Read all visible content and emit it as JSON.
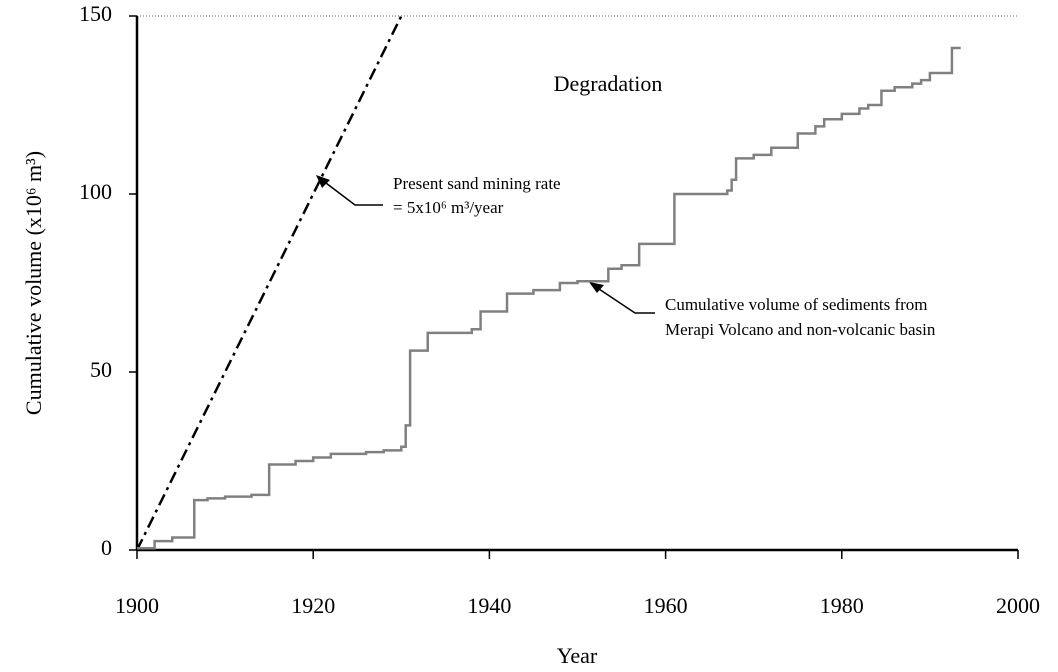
{
  "chart_data": {
    "type": "line",
    "xlabel": "Year",
    "ylabel": "Cumulative volume (x10⁶ m³)",
    "xlim": [
      1900,
      2000
    ],
    "xticks": [
      1900,
      1920,
      1940,
      1960,
      1980,
      2000
    ],
    "ylim": [
      0,
      150
    ],
    "yticks": [
      0,
      50,
      100,
      150
    ],
    "annotations": [
      "Degradation",
      "Present sand mining rate",
      "= 5x10⁶ m³/year",
      "Cumulative volume of sediments from",
      "Merapi Volcano and non-volcanic basin"
    ],
    "series": [
      {
        "name": "Present sand mining rate",
        "color": "#000000",
        "dash": "dash-dot",
        "step": false,
        "x": [
          1900,
          1930
        ],
        "values": [
          0,
          150
        ]
      },
      {
        "name": "Cumulative volume of sediments",
        "color": "#808080",
        "dash": "solid",
        "step": true,
        "x": [
          1900,
          1902,
          1904,
          1906.5,
          1908,
          1910,
          1913,
          1915,
          1918,
          1920,
          1922,
          1926,
          1928,
          1930,
          1930.5,
          1931,
          1933,
          1938,
          1939,
          1942,
          1945,
          1948,
          1950,
          1953.5,
          1955,
          1957,
          1961,
          1967,
          1967.5,
          1968,
          1970,
          1972,
          1975,
          1977,
          1978,
          1980,
          1982,
          1983,
          1984.5,
          1986,
          1988,
          1989,
          1990,
          1992.5,
          1993.5
        ],
        "values": [
          0.5,
          2.5,
          3.5,
          14,
          14.5,
          15,
          15.5,
          24,
          25,
          26,
          27,
          27.5,
          28,
          29,
          35,
          56,
          61,
          62,
          67,
          72,
          73,
          75,
          75.5,
          79,
          80,
          86,
          100,
          101,
          104,
          110,
          111,
          113,
          117,
          119,
          121,
          122.5,
          124,
          125,
          129,
          130,
          131,
          132,
          134,
          141,
          141
        ]
      }
    ]
  }
}
